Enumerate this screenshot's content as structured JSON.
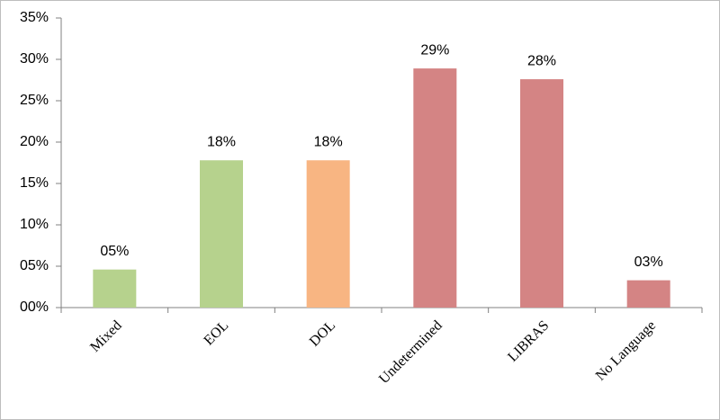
{
  "chart_data": {
    "type": "bar",
    "categories": [
      "Mixed",
      "EOL",
      "DOL",
      "Undetermined",
      "LIBRAS",
      "No Language"
    ],
    "values": [
      4.6,
      17.8,
      17.8,
      28.9,
      27.6,
      3.3
    ],
    "value_labels": [
      "05%",
      "18%",
      "18%",
      "29%",
      "28%",
      "03%"
    ],
    "colors": [
      "#b6d28d",
      "#b6d28d",
      "#f8b582",
      "#d48484",
      "#d48484",
      "#d48484"
    ],
    "ylim": [
      0,
      35
    ],
    "yticks": [
      {
        "value": 0,
        "label": "00%"
      },
      {
        "value": 5,
        "label": "05%"
      },
      {
        "value": 10,
        "label": "10%"
      },
      {
        "value": 15,
        "label": "15%"
      },
      {
        "value": 20,
        "label": "20%"
      },
      {
        "value": 25,
        "label": "25%"
      },
      {
        "value": 30,
        "label": "30%"
      },
      {
        "value": 35,
        "label": "35%"
      }
    ],
    "grid": false
  }
}
